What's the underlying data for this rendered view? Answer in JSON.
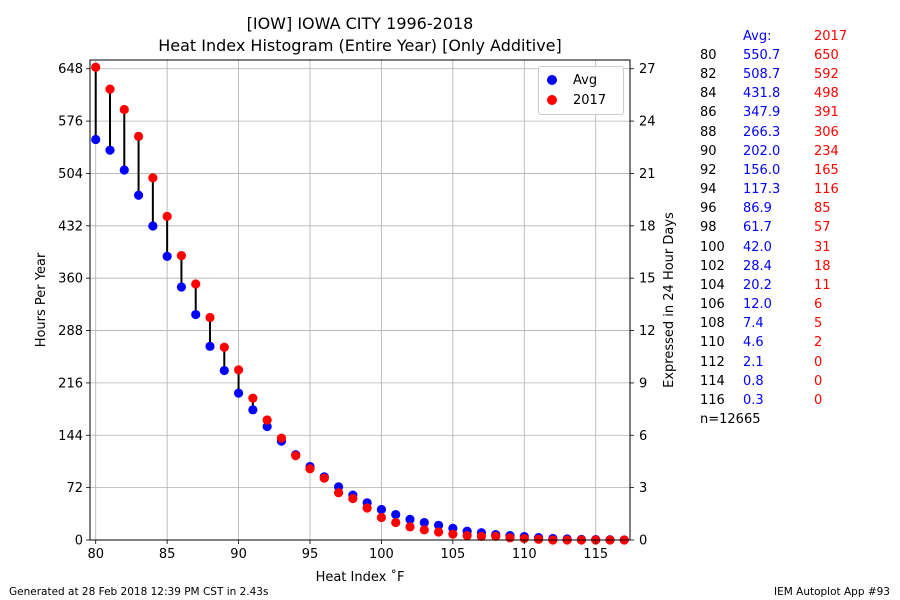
{
  "chart_data": {
    "type": "scatter",
    "title": "[IOW] IOWA CITY 1996-2018",
    "subtitle": "Heat Index Histogram (Entire Year) [Only Additive]",
    "xlabel": "Heat Index ˚F",
    "ylabel": "Hours Per Year",
    "y2label": "Expressed in 24 Hour Days",
    "xlim": [
      79.6,
      117.4
    ],
    "ylim": [
      0,
      660
    ],
    "xticks": [
      80,
      85,
      90,
      95,
      100,
      105,
      110,
      115
    ],
    "yticks": [
      0,
      72,
      144,
      216,
      288,
      360,
      432,
      504,
      576,
      648
    ],
    "y2ticks": [
      0,
      3,
      6,
      9,
      12,
      15,
      18,
      21,
      24,
      27
    ],
    "grid": true,
    "legend_position": "top-right",
    "x": [
      80,
      81,
      82,
      83,
      84,
      85,
      86,
      87,
      88,
      89,
      90,
      91,
      92,
      93,
      94,
      95,
      96,
      97,
      98,
      99,
      100,
      101,
      102,
      103,
      104,
      105,
      106,
      107,
      108,
      109,
      110,
      111,
      112,
      113,
      114,
      115,
      116,
      117
    ],
    "series": [
      {
        "name": "Avg",
        "color": "#0000ff",
        "values": [
          550.7,
          536,
          508.7,
          474,
          431.8,
          390,
          347.9,
          310,
          266.3,
          233,
          202.0,
          179,
          156.0,
          136,
          117.3,
          101,
          86.9,
          73,
          61.7,
          51,
          42.0,
          35,
          28.4,
          24,
          20.2,
          16,
          12.0,
          10,
          7.4,
          6,
          4.6,
          3.3,
          2.1,
          1.4,
          0.8,
          0.5,
          0.3,
          0.1
        ]
      },
      {
        "name": "2017",
        "color": "#ff0000",
        "values": [
          650,
          620,
          592,
          555,
          498,
          445,
          391,
          352,
          306,
          265,
          234,
          195,
          165,
          140,
          116,
          98,
          85,
          65,
          57,
          44,
          31,
          24,
          18,
          14,
          11,
          8,
          6,
          5,
          5,
          3,
          2,
          1,
          0,
          0,
          0,
          0,
          0,
          0
        ]
      }
    ]
  },
  "side_table": {
    "header_avg": "Avg:",
    "header_year": "2017",
    "rows": [
      {
        "temp": "80",
        "avg": "550.7",
        "year": "650"
      },
      {
        "temp": "82",
        "avg": "508.7",
        "year": "592"
      },
      {
        "temp": "84",
        "avg": "431.8",
        "year": "498"
      },
      {
        "temp": "86",
        "avg": "347.9",
        "year": "391"
      },
      {
        "temp": "88",
        "avg": "266.3",
        "year": "306"
      },
      {
        "temp": "90",
        "avg": "202.0",
        "year": "234"
      },
      {
        "temp": "92",
        "avg": "156.0",
        "year": "165"
      },
      {
        "temp": "94",
        "avg": "117.3",
        "year": "116"
      },
      {
        "temp": "96",
        "avg": "86.9",
        "year": "85"
      },
      {
        "temp": "98",
        "avg": "61.7",
        "year": "57"
      },
      {
        "temp": "100",
        "avg": "42.0",
        "year": "31"
      },
      {
        "temp": "102",
        "avg": "28.4",
        "year": "18"
      },
      {
        "temp": "104",
        "avg": "20.2",
        "year": "11"
      },
      {
        "temp": "106",
        "avg": "12.0",
        "year": "6"
      },
      {
        "temp": "108",
        "avg": "7.4",
        "year": "5"
      },
      {
        "temp": "110",
        "avg": "4.6",
        "year": "2"
      },
      {
        "temp": "112",
        "avg": "2.1",
        "year": "0"
      },
      {
        "temp": "114",
        "avg": "0.8",
        "year": "0"
      },
      {
        "temp": "116",
        "avg": "0.3",
        "year": "0"
      }
    ],
    "count": "n=12665"
  },
  "footer": {
    "left": "Generated at 28 Feb 2018 12:39 PM CST in 2.43s",
    "right": "IEM Autoplot App #93"
  }
}
